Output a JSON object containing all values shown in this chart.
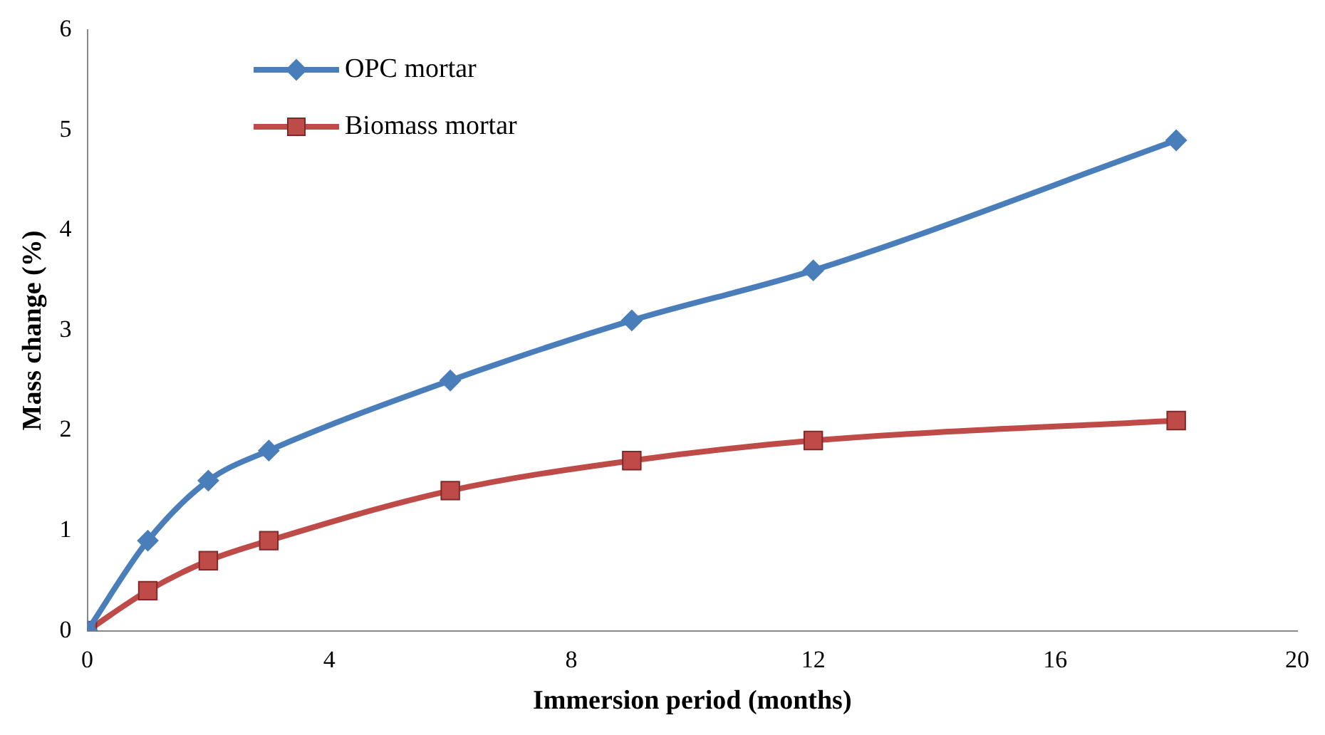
{
  "chart_data": {
    "type": "line",
    "xlabel": "Immersion period (months)",
    "ylabel": "Mass change (%)",
    "x": [
      0,
      1,
      2,
      3,
      6,
      9,
      12,
      18
    ],
    "series": [
      {
        "name": "OPC mortar",
        "color": "#4a7ebb",
        "marker": "diamond",
        "values": [
          0,
          0.9,
          1.5,
          1.8,
          2.5,
          3.1,
          3.6,
          4.9
        ]
      },
      {
        "name": "Biomass mortar",
        "color": "#be4b48",
        "marker": "square",
        "values": [
          0,
          0.4,
          0.7,
          0.9,
          1.4,
          1.7,
          1.9,
          2.1
        ]
      }
    ],
    "xlim": [
      0,
      20
    ],
    "xticks": [
      0,
      4,
      8,
      12,
      16,
      20
    ],
    "ylim": [
      0,
      6
    ],
    "yticks": [
      0,
      1,
      2,
      3,
      4,
      5,
      6
    ],
    "grid": false,
    "legend": "top left",
    "line_style": "solid"
  }
}
